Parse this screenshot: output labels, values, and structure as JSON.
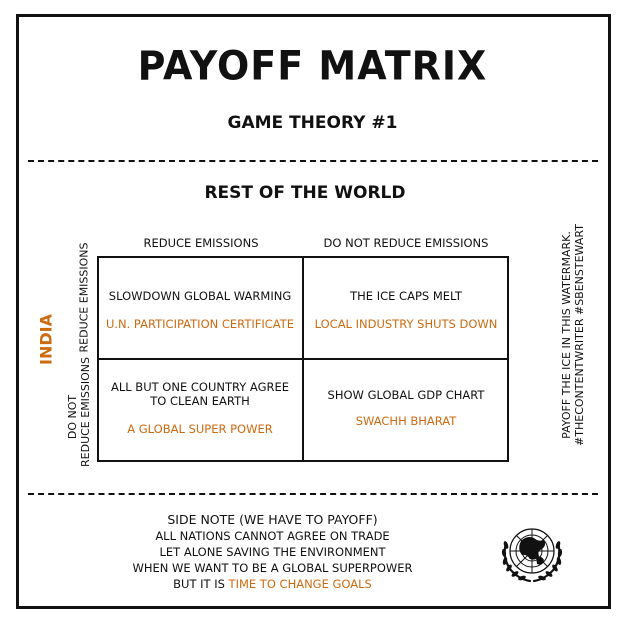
{
  "title": "PAYOFF MATRIX",
  "subtitle": "GAME THEORY #1",
  "column_player": "REST OF THE WORLD",
  "row_player": "INDIA",
  "columns": [
    "REDUCE EMISSIONS",
    "DO NOT REDUCE EMISSIONS"
  ],
  "rows": [
    "REDUCE EMISSIONS",
    "DO NOT\nREDUCE EMISSIONS"
  ],
  "cells": [
    {
      "outcome": "SLOWDOWN GLOBAL WARMING",
      "payoff": "U.N. PARTICIPATION CERTIFICATE"
    },
    {
      "outcome": "THE ICE CAPS MELT",
      "payoff": "LOCAL INDUSTRY SHUTS DOWN"
    },
    {
      "outcome": "ALL BUT ONE COUNTRY AGREE\nTO CLEAN EARTH",
      "payoff": "A GLOBAL SUPER POWER"
    },
    {
      "outcome": "SHOW GLOBAL GDP CHART",
      "payoff": "SWACHH BHARAT"
    }
  ],
  "side_note": {
    "line1": "PAYOFF THE ICE IN THIS WATERMARK.",
    "line2": "#THECONTENTWRITER #SBENSTEWART"
  },
  "footnote": {
    "heading": "SIDE NOTE (WE HAVE TO PAYOFF)",
    "lines": [
      "ALL NATIONS CANNOT AGREE ON TRADE",
      "LET ALONE SAVING THE ENVIRONMENT",
      "WHEN WE WANT TO BE A GLOBAL SUPERPOWER"
    ],
    "last_prefix": "BUT IT IS ",
    "last_highlight": "TIME TO CHANGE GOALS"
  },
  "emblem_icon": "un-emblem-icon",
  "colors": {
    "accent": "#cc6a10",
    "ink": "#111111",
    "background": "#ffffff"
  }
}
